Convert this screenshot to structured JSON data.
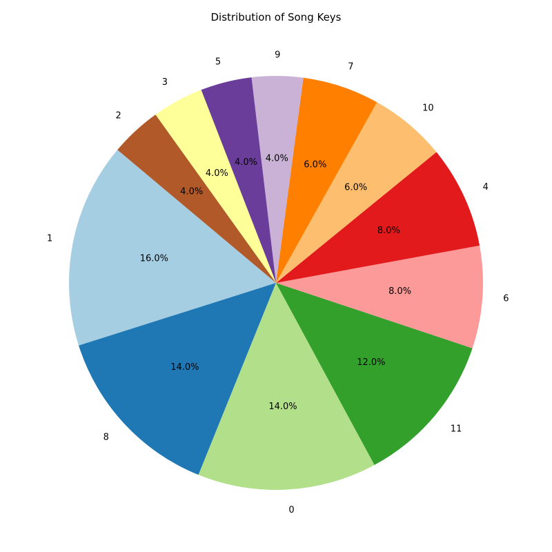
{
  "chart_data": {
    "type": "pie",
    "title": "Distribution of Song Keys",
    "start_angle_deg": 140,
    "direction": "counterclockwise",
    "slices": [
      {
        "label": "1",
        "value": 16.0,
        "pct_text": "16.0%",
        "color": "#a6cee3"
      },
      {
        "label": "8",
        "value": 14.0,
        "pct_text": "14.0%",
        "color": "#1f78b4"
      },
      {
        "label": "0",
        "value": 14.0,
        "pct_text": "14.0%",
        "color": "#b2df8a"
      },
      {
        "label": "11",
        "value": 12.0,
        "pct_text": "12.0%",
        "color": "#33a02c"
      },
      {
        "label": "6",
        "value": 8.0,
        "pct_text": "8.0%",
        "color": "#fb9a99"
      },
      {
        "label": "4",
        "value": 8.0,
        "pct_text": "8.0%",
        "color": "#e31a1c"
      },
      {
        "label": "10",
        "value": 6.0,
        "pct_text": "6.0%",
        "color": "#fdbf6f"
      },
      {
        "label": "7",
        "value": 6.0,
        "pct_text": "6.0%",
        "color": "#ff7f00"
      },
      {
        "label": "9",
        "value": 4.0,
        "pct_text": "4.0%",
        "color": "#cab2d6"
      },
      {
        "label": "5",
        "value": 4.0,
        "pct_text": "4.0%",
        "color": "#6a3d9a"
      },
      {
        "label": "3",
        "value": 4.0,
        "pct_text": "4.0%",
        "color": "#ffff99"
      },
      {
        "label": "2",
        "value": 4.0,
        "pct_text": "4.0%",
        "color": "#b15928"
      }
    ]
  }
}
